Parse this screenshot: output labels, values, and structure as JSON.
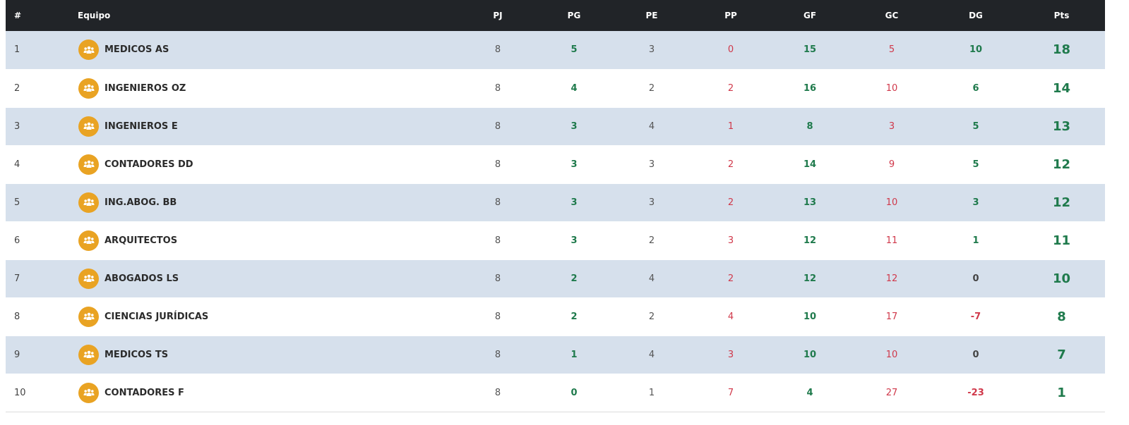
{
  "columns": [
    "#",
    "Equipo",
    "PJ",
    "PG",
    "PE",
    "PP",
    "GF",
    "GC",
    "DG",
    "Pts"
  ],
  "team_icon": "team-group-icon",
  "colors": {
    "header_bg": "#212428",
    "stripe": "#d6e0ec",
    "positive": "#1f7a4c",
    "negative": "#d0384a",
    "logo": "#e9a323"
  },
  "rows": [
    {
      "pos": "1",
      "team": "MEDICOS AS",
      "pj": "8",
      "pg": "5",
      "pe": "3",
      "pp": "0",
      "gf": "15",
      "gc": "5",
      "dg": "10",
      "pts": "18"
    },
    {
      "pos": "2",
      "team": "INGENIEROS OZ",
      "pj": "8",
      "pg": "4",
      "pe": "2",
      "pp": "2",
      "gf": "16",
      "gc": "10",
      "dg": "6",
      "pts": "14"
    },
    {
      "pos": "3",
      "team": "INGENIEROS E",
      "pj": "8",
      "pg": "3",
      "pe": "4",
      "pp": "1",
      "gf": "8",
      "gc": "3",
      "dg": "5",
      "pts": "13"
    },
    {
      "pos": "4",
      "team": "CONTADORES DD",
      "pj": "8",
      "pg": "3",
      "pe": "3",
      "pp": "2",
      "gf": "14",
      "gc": "9",
      "dg": "5",
      "pts": "12"
    },
    {
      "pos": "5",
      "team": "ING.ABOG. BB",
      "pj": "8",
      "pg": "3",
      "pe": "3",
      "pp": "2",
      "gf": "13",
      "gc": "10",
      "dg": "3",
      "pts": "12"
    },
    {
      "pos": "6",
      "team": "ARQUITECTOS",
      "pj": "8",
      "pg": "3",
      "pe": "2",
      "pp": "3",
      "gf": "12",
      "gc": "11",
      "dg": "1",
      "pts": "11"
    },
    {
      "pos": "7",
      "team": "ABOGADOS LS",
      "pj": "8",
      "pg": "2",
      "pe": "4",
      "pp": "2",
      "gf": "12",
      "gc": "12",
      "dg": "0",
      "pts": "10"
    },
    {
      "pos": "8",
      "team": "CIENCIAS JURÍDICAS",
      "pj": "8",
      "pg": "2",
      "pe": "2",
      "pp": "4",
      "gf": "10",
      "gc": "17",
      "dg": "-7",
      "pts": "8"
    },
    {
      "pos": "9",
      "team": "MEDICOS TS",
      "pj": "8",
      "pg": "1",
      "pe": "4",
      "pp": "3",
      "gf": "10",
      "gc": "10",
      "dg": "0",
      "pts": "7"
    },
    {
      "pos": "10",
      "team": "CONTADORES F",
      "pj": "8",
      "pg": "0",
      "pe": "1",
      "pp": "7",
      "gf": "4",
      "gc": "27",
      "dg": "-23",
      "pts": "1"
    }
  ]
}
